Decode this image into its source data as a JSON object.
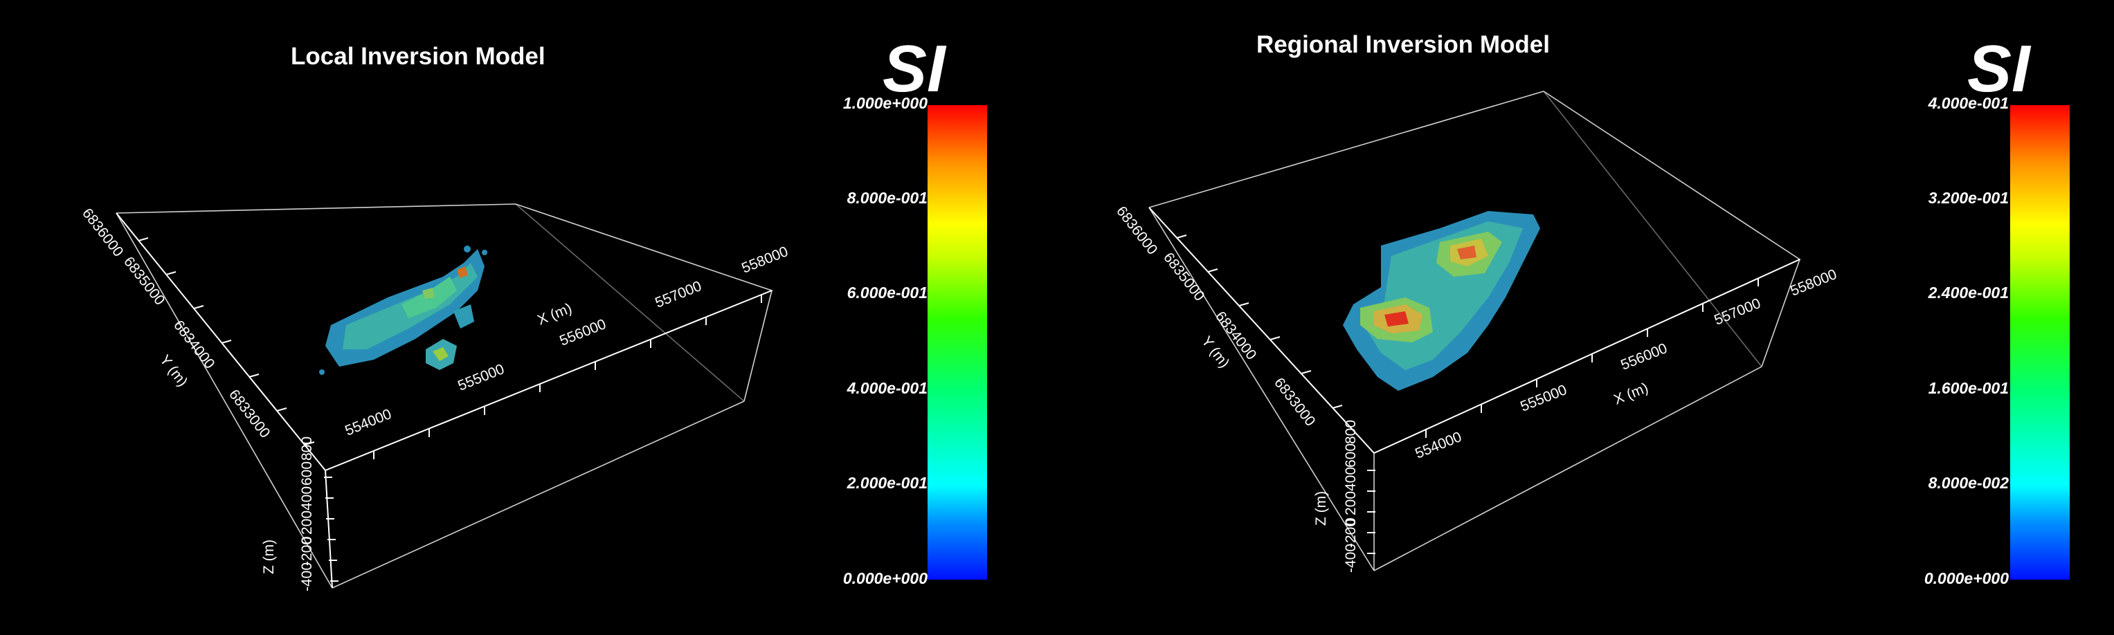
{
  "panels": [
    {
      "title": "Local Inversion Model",
      "x_axis_label": "X (m)",
      "y_axis_label": "Y (m)",
      "z_axis_label": "Z (m)",
      "x_ticks": [
        "554000",
        "555000",
        "556000",
        "557000",
        "558000"
      ],
      "y_ticks": [
        "6836000",
        "6835000",
        "6834000",
        "6833000"
      ],
      "z_ticks": [
        "-400",
        "-200",
        "0",
        "200",
        "400",
        "600",
        "800"
      ],
      "colorbar": {
        "unit": "SI",
        "ticks": [
          "1.000e+000",
          "8.000e-001",
          "6.000e-001",
          "4.000e-001",
          "2.000e-001",
          "0.000e+000"
        ]
      }
    },
    {
      "title": "Regional Inversion Model",
      "x_axis_label": "X (m)",
      "y_axis_label": "Y (m)",
      "z_axis_label": "Z (m)",
      "x_ticks": [
        "554000",
        "555000",
        "556000",
        "557000",
        "558000"
      ],
      "y_ticks": [
        "6836000",
        "6835000",
        "6834000",
        "6833000"
      ],
      "z_ticks": [
        "-400",
        "-200",
        "0",
        "200",
        "400",
        "600",
        "800"
      ],
      "colorbar": {
        "unit": "SI",
        "ticks": [
          "4.000e-001",
          "3.200e-001",
          "2.400e-001",
          "1.600e-001",
          "8.000e-002",
          "0.000e+000"
        ]
      }
    }
  ],
  "colors": {
    "background": "#000000",
    "wireframe": "#d0d0d0",
    "low": "#1a8fd0",
    "mid": "#3cc0a0",
    "high": "#e03020"
  }
}
